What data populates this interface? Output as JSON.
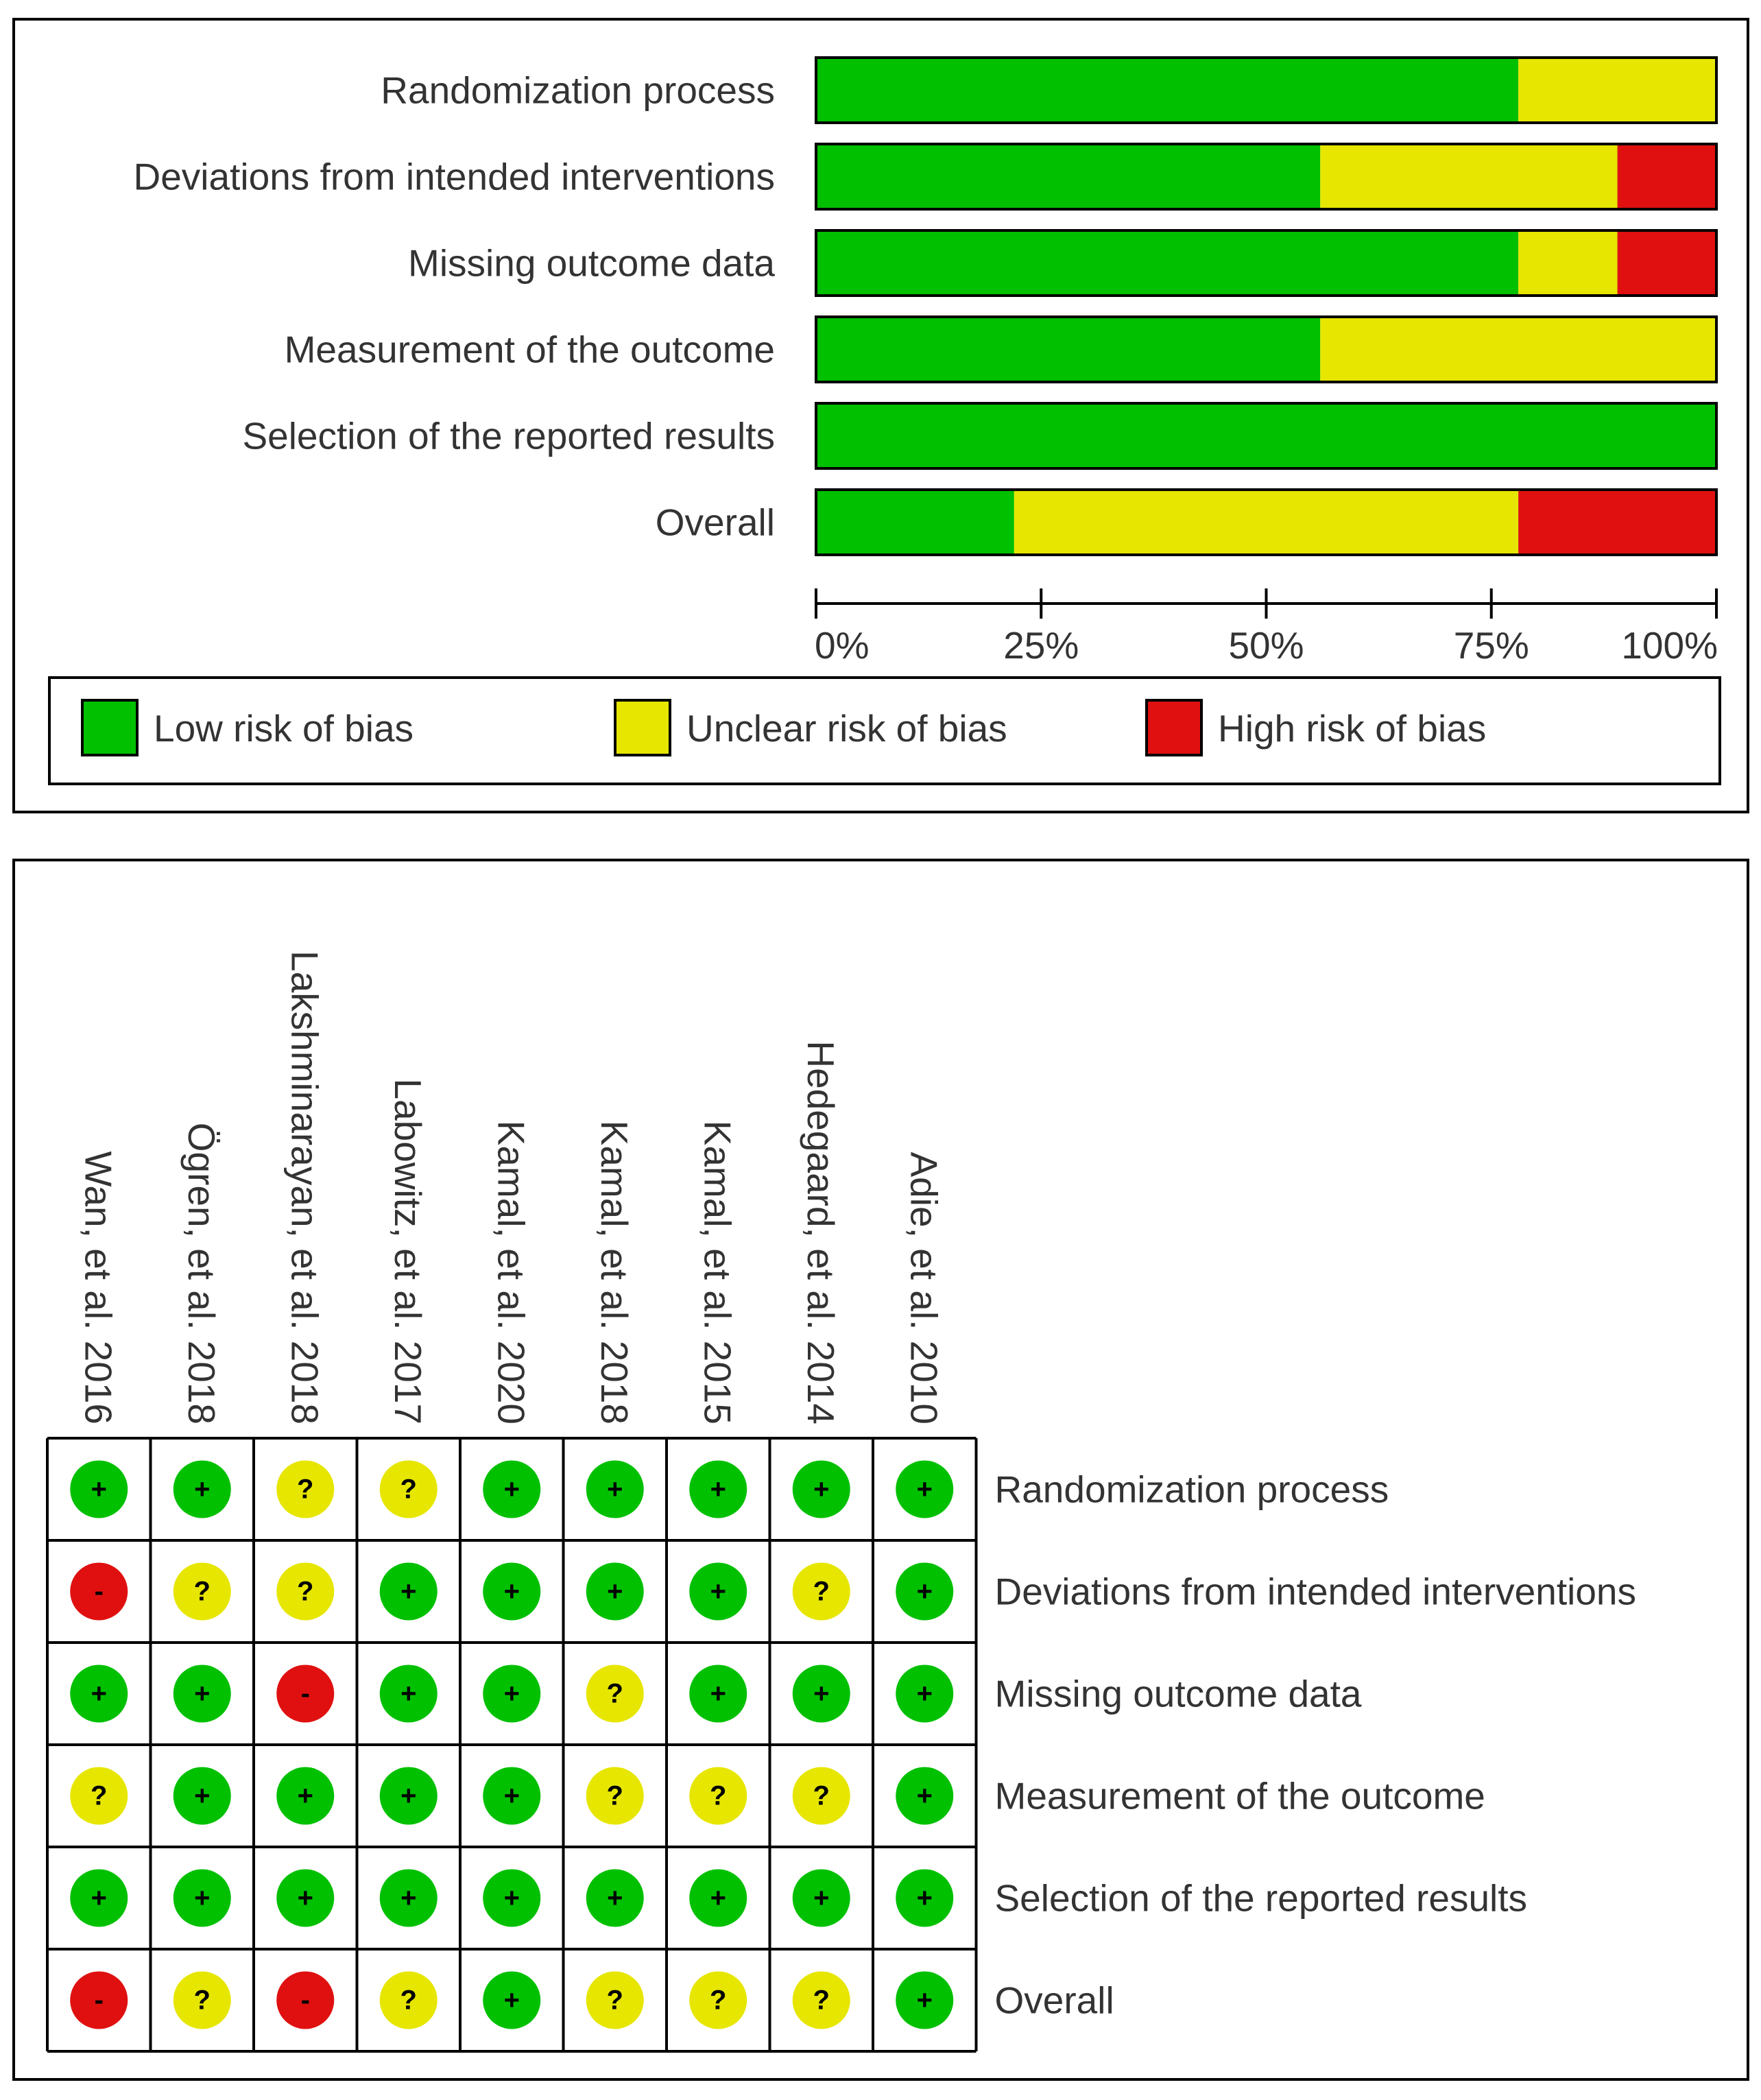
{
  "chart_data": [
    {
      "type": "bar",
      "orientation": "horizontal",
      "stacked": true,
      "title": "",
      "categories": [
        "Randomization process",
        "Deviations from intended interventions",
        "Missing outcome data",
        "Measurement of the outcome",
        "Selection of the reported results",
        "Overall"
      ],
      "series": [
        {
          "name": "Low risk of bias",
          "color": "#00c000",
          "values": [
            78,
            56,
            78,
            56,
            100,
            22
          ]
        },
        {
          "name": "Unclear risk of bias",
          "color": "#e6e600",
          "values": [
            22,
            33,
            11,
            44,
            0,
            56
          ]
        },
        {
          "name": "High risk of bias",
          "color": "#e01010",
          "values": [
            0,
            11,
            11,
            0,
            0,
            22
          ]
        }
      ],
      "xlim": [
        0,
        100
      ],
      "xticks": [
        "0%",
        "25%",
        "50%",
        "75%",
        "100%"
      ],
      "legend_position": "bottom"
    },
    {
      "type": "table",
      "title": "",
      "studies": [
        "Wan, et al. 2016",
        "Ögren, et al. 2018",
        "Lakshminarayan, et al. 2018",
        "Labowitz, et al. 2017",
        "Kamal, et al. 2020",
        "Kamal, et al. 2018",
        "Kamal, et al. 2015",
        "Hedegaard, et al. 2014",
        "Adie, et al. 2010"
      ],
      "domains": [
        "Randomization process",
        "Deviations from intended interventions",
        "Missing outcome data",
        "Measurement of the outcome",
        "Selection of the reported results",
        "Overall"
      ],
      "judgements": [
        [
          "+",
          "+",
          "?",
          "?",
          "+",
          "+",
          "+",
          "+",
          "+"
        ],
        [
          "-",
          "?",
          "?",
          "+",
          "+",
          "+",
          "+",
          "?",
          "+"
        ],
        [
          "+",
          "+",
          "-",
          "+",
          "+",
          "?",
          "+",
          "+",
          "+"
        ],
        [
          "?",
          "+",
          "+",
          "+",
          "+",
          "?",
          "?",
          "?",
          "+"
        ],
        [
          "+",
          "+",
          "+",
          "+",
          "+",
          "+",
          "+",
          "+",
          "+"
        ],
        [
          "-",
          "?",
          "-",
          "?",
          "+",
          "?",
          "?",
          "?",
          "+"
        ]
      ],
      "symbol_legend": {
        "+": "Low risk of bias",
        "?": "Unclear risk of bias",
        "-": "High risk of bias"
      }
    }
  ]
}
